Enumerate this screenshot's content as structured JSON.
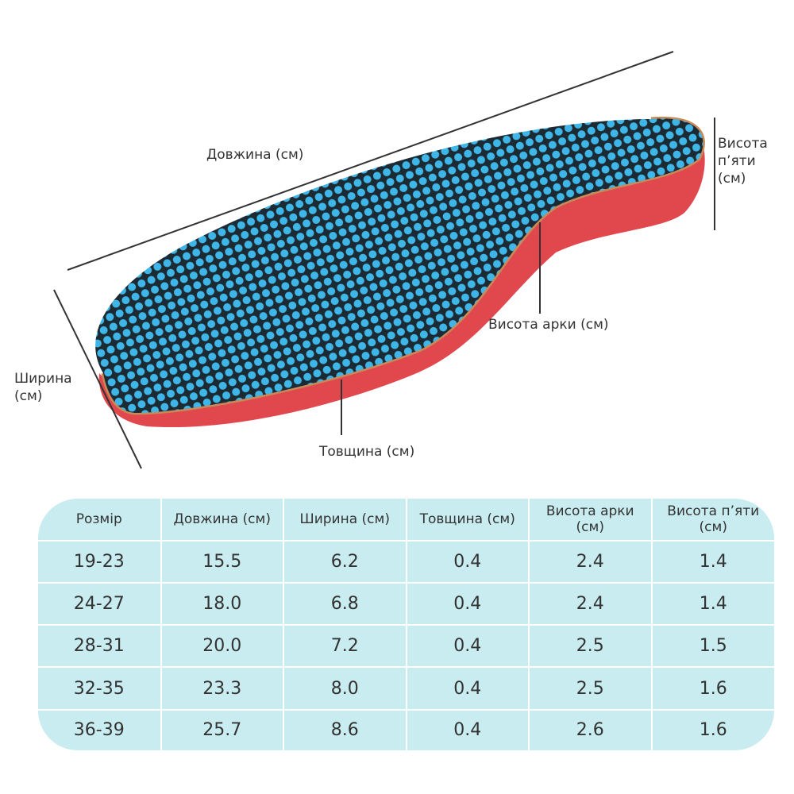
{
  "labels": {
    "length": "Довжина (см)",
    "heel_height": "Висота п’яти (см)",
    "arch_height": "Висота арки (см)",
    "width": "Ширина (см)",
    "thickness": "Товщина (см)"
  },
  "table": {
    "header": [
      "Розмір",
      "Довжина (см)",
      "Ширина (см)",
      "Товщина (см)",
      "Висота арки (см)",
      "Висота п’яти (см)"
    ],
    "rows": [
      [
        "19-23",
        "15.5",
        "6.2",
        "0.4",
        "2.4",
        "1.4"
      ],
      [
        "24-27",
        "18.0",
        "6.8",
        "0.4",
        "2.4",
        "1.4"
      ],
      [
        "28-31",
        "20.0",
        "7.2",
        "0.4",
        "2.5",
        "1.5"
      ],
      [
        "32-35",
        "23.3",
        "8.0",
        "0.4",
        "2.5",
        "1.6"
      ],
      [
        "36-39",
        "25.7",
        "8.6",
        "0.4",
        "2.6",
        "1.6"
      ]
    ]
  }
}
